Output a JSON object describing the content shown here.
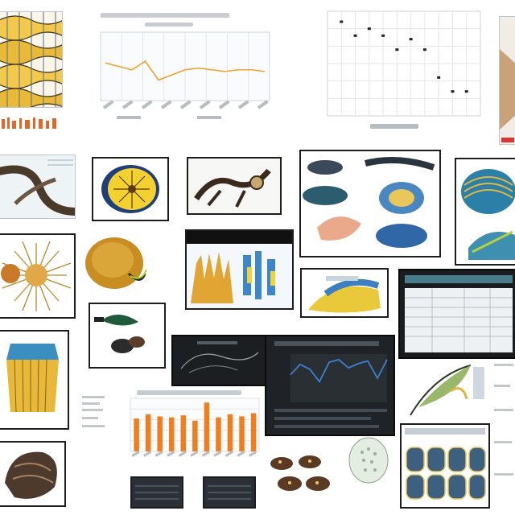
{
  "colors": {
    "background": "#ffffff",
    "frame": "#1d1d1d",
    "accent_orange": "#f07d1e",
    "accent_yellow": "#f2c417",
    "accent_blue": "#2f7fc4",
    "dark_panel": "#16181b",
    "grid": "#dfe3e6"
  },
  "line_chart_top": {
    "series": [
      62,
      60,
      58,
      63,
      52,
      55,
      58,
      59,
      58,
      57,
      58,
      58,
      57
    ]
  },
  "scatter_chart_top": {
    "points": [
      [
        1,
        9.4
      ],
      [
        2,
        8.6
      ],
      [
        3,
        9.0
      ],
      [
        4,
        8.6
      ],
      [
        5,
        7.8
      ],
      [
        6,
        8.4
      ],
      [
        7,
        7.8
      ],
      [
        8,
        6.2
      ],
      [
        9,
        5.4
      ],
      [
        10,
        5.4
      ]
    ]
  },
  "bar_chart_bottom": {
    "values": [
      62,
      70,
      66,
      64,
      68,
      58,
      92,
      64,
      70,
      66,
      72
    ]
  },
  "dark_line_chart": {
    "series": [
      40,
      55,
      48,
      30,
      58,
      62,
      50,
      56,
      60,
      35,
      62
    ]
  }
}
